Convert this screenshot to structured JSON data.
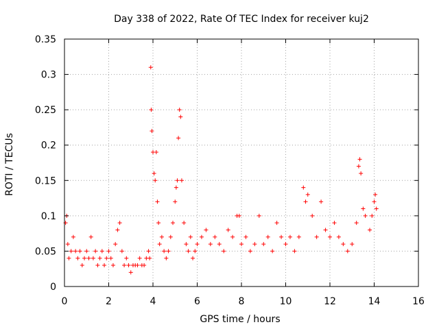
{
  "chart_data": {
    "type": "scatter",
    "title": "Day 338 of 2022, Rate Of TEC Index for receiver kuj2",
    "xlabel": "GPS time / hours",
    "ylabel": "ROTI / TECUs",
    "xlim": [
      0,
      16
    ],
    "ylim": [
      0,
      0.35
    ],
    "xticks": [
      0,
      2,
      4,
      6,
      8,
      10,
      12,
      14,
      16
    ],
    "xtick_labels": [
      "0",
      "2",
      "4",
      "6",
      "8",
      "10",
      "12",
      "14",
      "16"
    ],
    "yticks": [
      0,
      0.05,
      0.1,
      0.15,
      0.2,
      0.25,
      0.3,
      0.35
    ],
    "ytick_labels": [
      "0",
      "0.05",
      "0.1",
      "0.15",
      "0.2",
      "0.25",
      "0.3",
      "0.35"
    ],
    "grid": true,
    "marker": "+",
    "series": [
      {
        "name": "ROTI",
        "color": "#ff0000",
        "x": [
          0.05,
          0.1,
          0.15,
          0.2,
          0.3,
          0.4,
          0.5,
          0.6,
          0.7,
          0.8,
          0.9,
          1.0,
          1.1,
          1.2,
          1.3,
          1.4,
          1.5,
          1.6,
          1.7,
          1.8,
          1.9,
          2.0,
          2.1,
          2.2,
          2.3,
          2.4,
          2.5,
          2.6,
          2.7,
          2.8,
          2.9,
          3.0,
          3.1,
          3.2,
          3.3,
          3.4,
          3.5,
          3.6,
          3.7,
          3.8,
          3.85,
          3.9,
          3.92,
          3.95,
          4.0,
          4.05,
          4.1,
          4.15,
          4.2,
          4.25,
          4.3,
          4.4,
          4.5,
          4.6,
          4.7,
          4.8,
          4.9,
          5.0,
          5.05,
          5.1,
          5.15,
          5.2,
          5.25,
          5.3,
          5.4,
          5.5,
          5.6,
          5.7,
          5.8,
          5.9,
          6.0,
          6.2,
          6.4,
          6.6,
          6.8,
          7.0,
          7.2,
          7.4,
          7.6,
          7.8,
          7.9,
          8.0,
          8.2,
          8.4,
          8.6,
          8.8,
          9.0,
          9.2,
          9.4,
          9.6,
          9.8,
          10.0,
          10.2,
          10.4,
          10.6,
          10.8,
          10.9,
          11.0,
          11.2,
          11.4,
          11.6,
          11.8,
          12.0,
          12.2,
          12.4,
          12.6,
          12.8,
          13.0,
          13.2,
          13.3,
          13.35,
          13.4,
          13.5,
          13.6,
          13.8,
          13.9,
          14.0,
          14.05,
          14.1
        ],
        "y": [
          0.09,
          0.1,
          0.06,
          0.04,
          0.05,
          0.07,
          0.05,
          0.04,
          0.05,
          0.03,
          0.04,
          0.05,
          0.04,
          0.07,
          0.04,
          0.05,
          0.03,
          0.04,
          0.05,
          0.03,
          0.04,
          0.05,
          0.04,
          0.03,
          0.06,
          0.08,
          0.09,
          0.05,
          0.03,
          0.04,
          0.03,
          0.02,
          0.03,
          0.03,
          0.03,
          0.04,
          0.03,
          0.03,
          0.04,
          0.05,
          0.04,
          0.31,
          0.25,
          0.22,
          0.19,
          0.16,
          0.15,
          0.19,
          0.12,
          0.09,
          0.06,
          0.07,
          0.05,
          0.04,
          0.05,
          0.07,
          0.09,
          0.12,
          0.14,
          0.15,
          0.21,
          0.25,
          0.24,
          0.15,
          0.09,
          0.06,
          0.05,
          0.07,
          0.04,
          0.05,
          0.06,
          0.07,
          0.08,
          0.06,
          0.07,
          0.06,
          0.05,
          0.08,
          0.07,
          0.1,
          0.1,
          0.06,
          0.07,
          0.05,
          0.06,
          0.1,
          0.06,
          0.07,
          0.05,
          0.09,
          0.07,
          0.06,
          0.07,
          0.05,
          0.07,
          0.14,
          0.12,
          0.13,
          0.1,
          0.07,
          0.12,
          0.08,
          0.07,
          0.09,
          0.07,
          0.06,
          0.05,
          0.06,
          0.09,
          0.17,
          0.18,
          0.16,
          0.11,
          0.1,
          0.08,
          0.1,
          0.12,
          0.13,
          0.11
        ]
      }
    ]
  }
}
